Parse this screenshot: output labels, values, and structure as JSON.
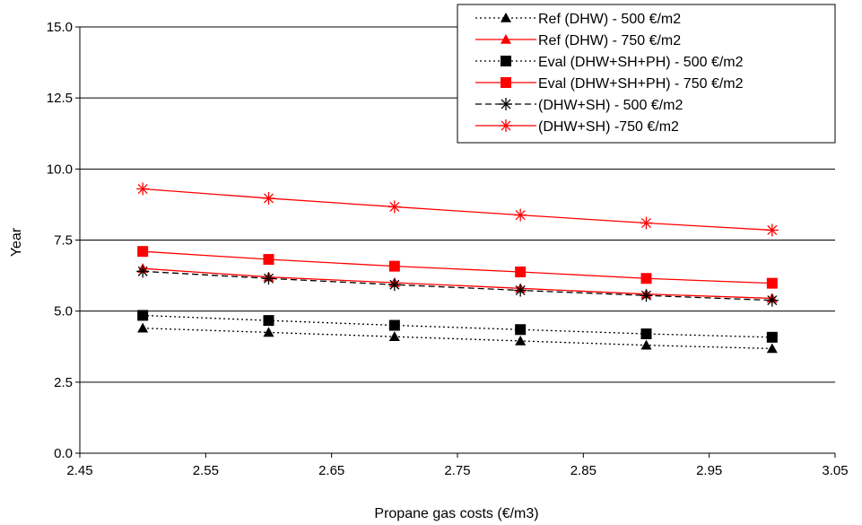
{
  "chart_data": {
    "type": "line",
    "title": "",
    "xlabel": "Propane gas costs (€/m3)",
    "ylabel": "Year",
    "xlim": [
      2.45,
      3.05
    ],
    "ylim": [
      0.0,
      15.0
    ],
    "x_ticks": [
      "2.45",
      "2.55",
      "2.65",
      "2.75",
      "2.85",
      "2.95",
      "3.05"
    ],
    "y_ticks": [
      "0.0",
      "2.5",
      "5.0",
      "7.5",
      "10.0",
      "12.5",
      "15.0"
    ],
    "grid": "horizontal",
    "legend_position": "top-right",
    "x": [
      2.5,
      2.6,
      2.7,
      2.8,
      2.9,
      3.0
    ],
    "series": [
      {
        "name": "Ref (DHW) - 500 €/m2",
        "color": "#000000",
        "marker": "triangle",
        "dash": "dotted",
        "values": [
          4.4,
          4.25,
          4.1,
          3.95,
          3.8,
          3.68
        ]
      },
      {
        "name": "Ref (DHW) - 750 €/m2",
        "color": "#ff0000",
        "marker": "triangle",
        "dash": "solid",
        "values": [
          6.5,
          6.2,
          6.0,
          5.8,
          5.6,
          5.45
        ]
      },
      {
        "name": "Eval (DHW+SH+PH) - 500 €/m2",
        "color": "#000000",
        "marker": "square",
        "dash": "dotted",
        "values": [
          4.85,
          4.67,
          4.5,
          4.35,
          4.2,
          4.08
        ]
      },
      {
        "name": "Eval (DHW+SH+PH) - 750 €/m2",
        "color": "#ff0000",
        "marker": "square",
        "dash": "solid",
        "values": [
          7.1,
          6.82,
          6.58,
          6.38,
          6.15,
          5.98
        ]
      },
      {
        "name": "(DHW+SH) - 500 €/m2",
        "color": "#000000",
        "marker": "asterisk",
        "dash": "dashed",
        "values": [
          6.4,
          6.15,
          5.93,
          5.73,
          5.55,
          5.38
        ]
      },
      {
        "name": "(DHW+SH) -750 €/m2",
        "color": "#ff0000",
        "marker": "asterisk",
        "dash": "solid",
        "values": [
          9.3,
          8.97,
          8.67,
          8.38,
          8.1,
          7.85
        ]
      }
    ]
  }
}
